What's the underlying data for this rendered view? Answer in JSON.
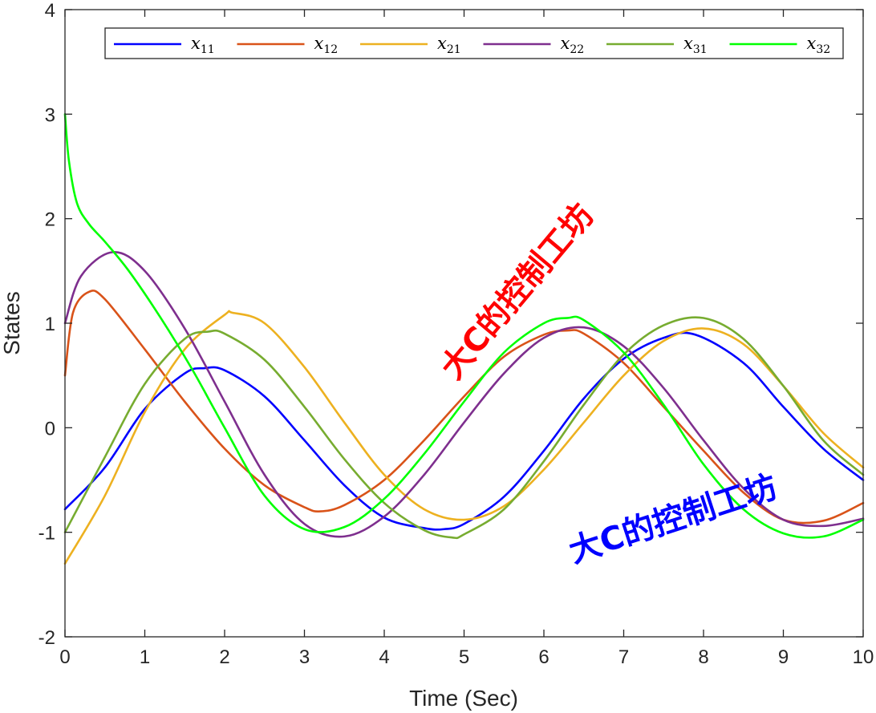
{
  "chart_data": {
    "type": "line",
    "xlabel": "Time (Sec)",
    "ylabel": "States",
    "xlim": [
      0,
      10
    ],
    "ylim": [
      -2,
      4
    ],
    "xticks": [
      "0",
      "1",
      "2",
      "3",
      "4",
      "5",
      "6",
      "7",
      "8",
      "9",
      "10"
    ],
    "yticks": [
      "-2",
      "-1",
      "0",
      "1",
      "2",
      "3",
      "4"
    ],
    "grid": false,
    "legend": {
      "placement": "top",
      "orientation": "horizontal"
    },
    "series": [
      {
        "name": "x11",
        "name_main": "x",
        "name_sub": "11",
        "color": "#0000ff",
        "x": [
          0,
          0.5,
          1,
          1.5,
          1.75,
          2,
          2.5,
          3,
          3.5,
          4,
          4.5,
          4.75,
          5,
          5.5,
          6,
          6.5,
          7,
          7.5,
          7.9,
          8.5,
          9,
          9.5,
          10
        ],
        "y": [
          -0.78,
          -0.38,
          0.18,
          0.52,
          0.57,
          0.55,
          0.3,
          -0.12,
          -0.55,
          -0.86,
          -0.96,
          -0.97,
          -0.92,
          -0.66,
          -0.22,
          0.28,
          0.66,
          0.86,
          0.89,
          0.62,
          0.2,
          -0.2,
          -0.5
        ]
      },
      {
        "name": "x12",
        "name_main": "x",
        "name_sub": "12",
        "color": "#d95319",
        "x": [
          0,
          0.1,
          0.3,
          0.5,
          1,
          1.5,
          2,
          2.5,
          3,
          3.2,
          3.5,
          4,
          4.5,
          5,
          5.5,
          6,
          6.3,
          6.5,
          7,
          7.5,
          8,
          8.5,
          9,
          9.5,
          10
        ],
        "y": [
          0.5,
          1.1,
          1.3,
          1.23,
          0.75,
          0.25,
          -0.2,
          -0.55,
          -0.76,
          -0.8,
          -0.74,
          -0.5,
          -0.12,
          0.3,
          0.68,
          0.89,
          0.93,
          0.9,
          0.62,
          0.2,
          -0.22,
          -0.62,
          -0.88,
          -0.89,
          -0.72
        ]
      },
      {
        "name": "x21",
        "name_main": "x",
        "name_sub": "21",
        "color": "#edb120",
        "x": [
          0,
          0.5,
          1,
          1.5,
          2,
          2.1,
          2.5,
          3,
          3.5,
          4,
          4.5,
          5,
          5.5,
          6,
          6.5,
          7,
          7.5,
          8,
          8.5,
          9,
          9.5,
          10
        ],
        "y": [
          -1.3,
          -0.65,
          0.15,
          0.75,
          1.08,
          1.1,
          1.0,
          0.58,
          0.05,
          -0.45,
          -0.78,
          -0.88,
          -0.75,
          -0.4,
          0.05,
          0.5,
          0.83,
          0.95,
          0.8,
          0.4,
          -0.05,
          -0.38
        ]
      },
      {
        "name": "x22",
        "name_main": "x",
        "name_sub": "22",
        "color": "#7e2f8e",
        "x": [
          0,
          0.2,
          0.6,
          1,
          1.5,
          2,
          2.5,
          3,
          3.5,
          4,
          4.5,
          5,
          5.5,
          6,
          6.5,
          7,
          7.5,
          8,
          8.5,
          9,
          9.5,
          10
        ],
        "y": [
          1.0,
          1.45,
          1.68,
          1.5,
          0.95,
          0.25,
          -0.45,
          -0.92,
          -1.04,
          -0.85,
          -0.45,
          0.05,
          0.52,
          0.86,
          0.96,
          0.78,
          0.38,
          -0.12,
          -0.58,
          -0.88,
          -0.94,
          -0.87
        ]
      },
      {
        "name": "x31",
        "name_main": "x",
        "name_sub": "31",
        "color": "#77ac30",
        "x": [
          0,
          0.5,
          1,
          1.5,
          1.8,
          2,
          2.5,
          3,
          3.5,
          4,
          4.5,
          4.85,
          5,
          5.5,
          6,
          6.5,
          7,
          7.5,
          8,
          8.5,
          9,
          9.5,
          10
        ],
        "y": [
          -1.0,
          -0.28,
          0.42,
          0.85,
          0.92,
          0.9,
          0.65,
          0.2,
          -0.3,
          -0.72,
          -0.98,
          -1.05,
          -1.02,
          -0.78,
          -0.32,
          0.22,
          0.7,
          0.98,
          1.05,
          0.85,
          0.4,
          -0.12,
          -0.45
        ]
      },
      {
        "name": "x32",
        "name_main": "x",
        "name_sub": "32",
        "color": "#00ff00",
        "x": [
          0,
          0.05,
          0.15,
          0.3,
          0.5,
          0.8,
          1.2,
          1.6,
          2,
          2.5,
          3,
          3.5,
          4,
          4.5,
          5,
          5.5,
          6,
          6.3,
          6.5,
          7,
          7.5,
          8,
          8.5,
          9,
          9.5,
          10
        ],
        "y": [
          3.0,
          2.55,
          2.15,
          1.95,
          1.78,
          1.5,
          1.05,
          0.55,
          0.0,
          -0.65,
          -0.97,
          -0.95,
          -0.68,
          -0.25,
          0.25,
          0.72,
          1.0,
          1.05,
          1.03,
          0.72,
          0.22,
          -0.35,
          -0.78,
          -1.01,
          -1.04,
          -0.88
        ]
      }
    ]
  },
  "watermarks": [
    {
      "text": "大C的控制工坊",
      "color": "#ff0000",
      "rotation": -50
    },
    {
      "text": "大C的控制工坊",
      "color": "#0000ff",
      "rotation": -18
    }
  ]
}
